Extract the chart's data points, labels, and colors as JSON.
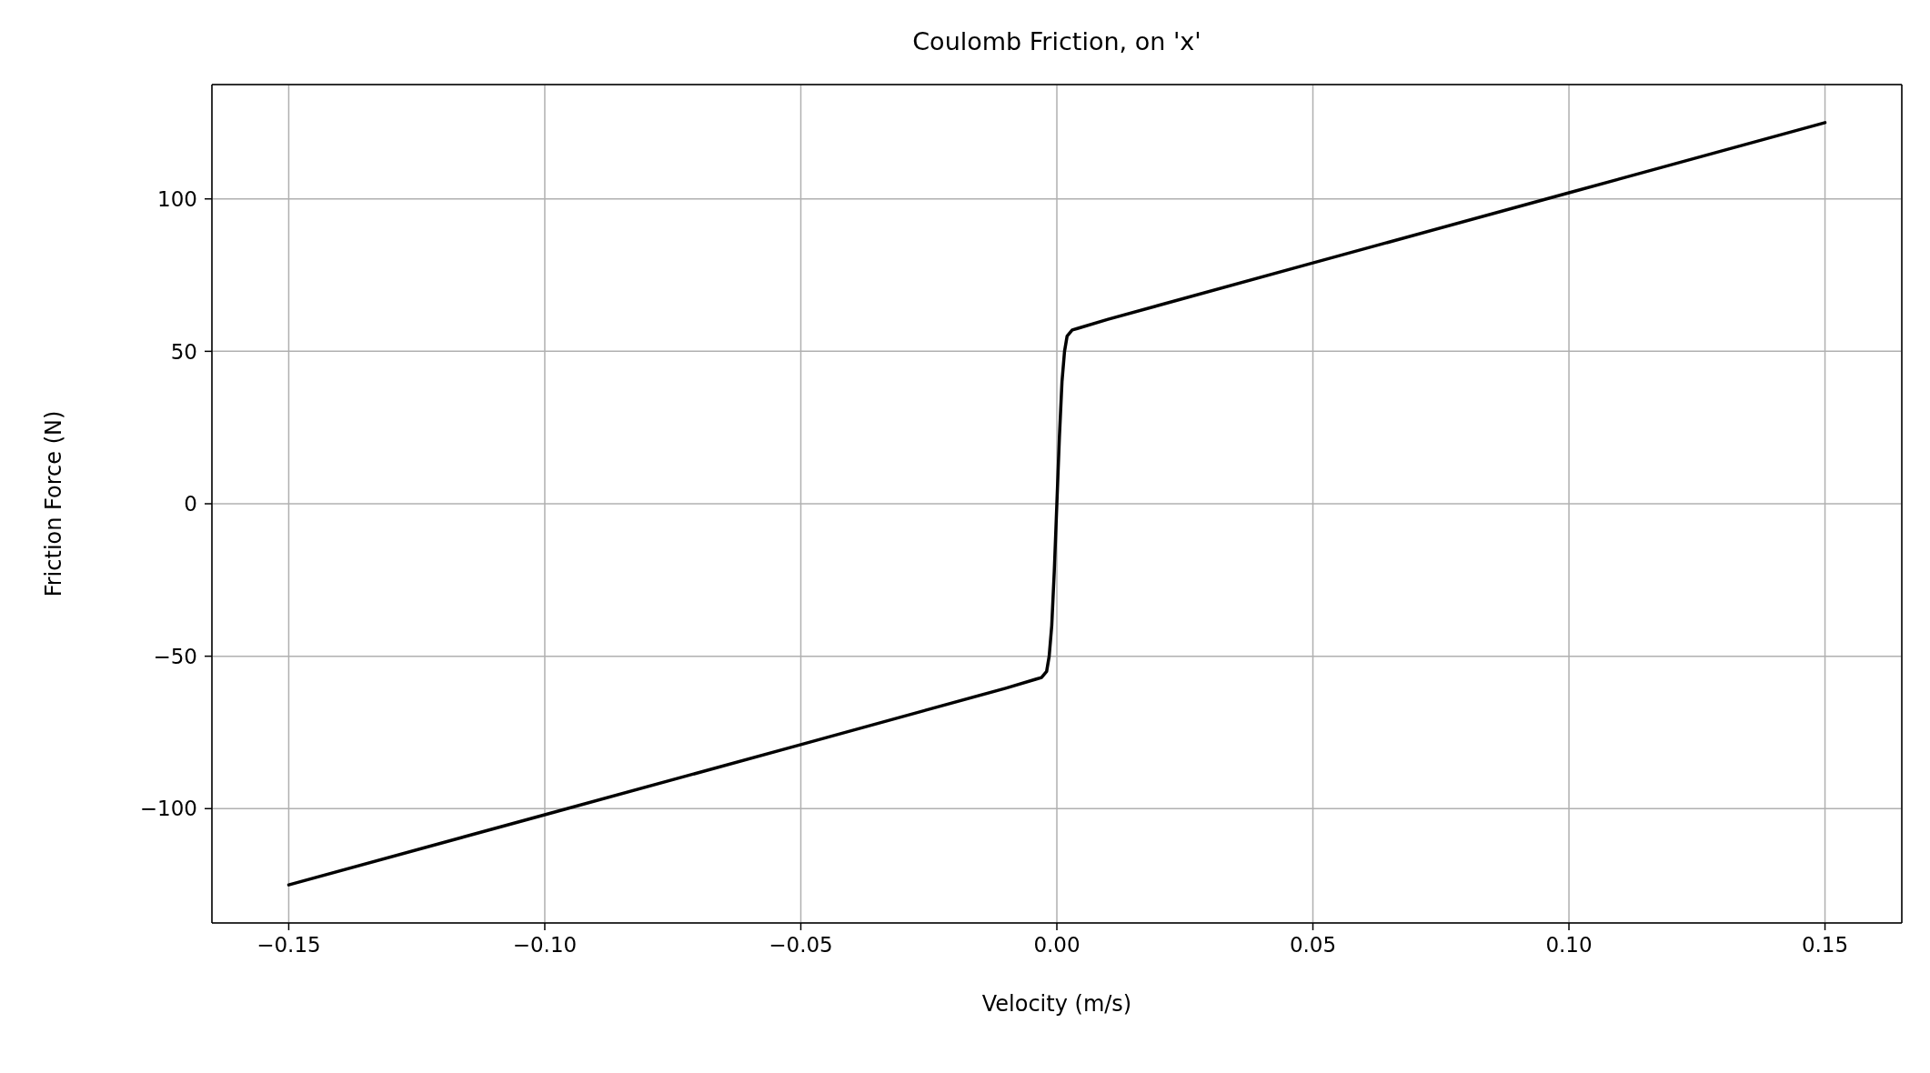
{
  "chart_data": {
    "type": "line",
    "title": "Coulomb Friction, on 'x'",
    "xlabel": "Velocity (m/s)",
    "ylabel": "Friction Force (N)",
    "x": [
      -0.15,
      -0.1,
      -0.05,
      -0.01,
      -0.004,
      -0.003,
      -0.002,
      -0.0015,
      -0.001,
      -0.0005,
      0,
      0.0005,
      0.001,
      0.0015,
      0.002,
      0.003,
      0.004,
      0.01,
      0.05,
      0.1,
      0.15
    ],
    "series": [
      {
        "color": "#000000",
        "values": [
          -125,
          -102,
          -79,
          -60.5,
          -57.5,
          -57,
          -55,
          -50,
          -40,
          -22,
          0,
          22,
          40,
          50,
          55,
          57,
          57.5,
          60.5,
          79,
          102,
          125
        ]
      }
    ],
    "xlim": [
      -0.165,
      0.165
    ],
    "ylim": [
      -137.5,
      137.5
    ],
    "xticks": [
      {
        "value": -0.15,
        "label": "−0.15"
      },
      {
        "value": -0.1,
        "label": "−0.10"
      },
      {
        "value": -0.05,
        "label": "−0.05"
      },
      {
        "value": 0,
        "label": "0.00"
      },
      {
        "value": 0.05,
        "label": "0.05"
      },
      {
        "value": 0.1,
        "label": "0.10"
      },
      {
        "value": 0.15,
        "label": "0.15"
      }
    ],
    "yticks": [
      {
        "value": -100,
        "label": "−100"
      },
      {
        "value": -50,
        "label": "−50"
      },
      0,
      50,
      100
    ],
    "grid": true,
    "legend": false,
    "marker": "none",
    "line_style": "solid"
  }
}
